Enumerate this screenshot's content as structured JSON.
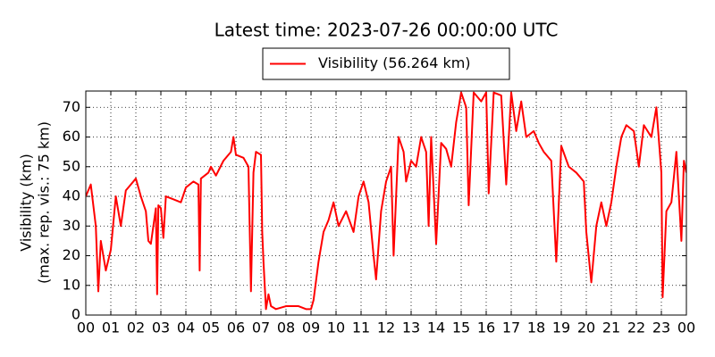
{
  "chart_data": {
    "type": "line",
    "title": "Latest time: 2023-07-26 00:00:00 UTC",
    "y_label": [
      "Visibility (km)",
      "(max. rep. vis.: 75 km)"
    ],
    "legend": "upper center",
    "grid": true,
    "x": [
      0,
      0.2,
      0.4,
      0.5,
      0.6,
      0.8,
      1.0,
      1.2,
      1.4,
      1.6,
      1.8,
      2.0,
      2.2,
      2.4,
      2.5,
      2.6,
      2.8,
      2.85,
      2.9,
      3.0,
      3.1,
      3.2,
      3.5,
      3.8,
      4.0,
      4.3,
      4.5,
      4.55,
      4.6,
      4.9,
      5.0,
      5.2,
      5.5,
      5.8,
      5.9,
      6.0,
      6.3,
      6.5,
      6.6,
      6.7,
      6.8,
      7.0,
      7.05,
      7.1,
      7.2,
      7.3,
      7.4,
      7.6,
      8.0,
      8.5,
      8.8,
      9.0,
      9.1,
      9.3,
      9.5,
      9.7,
      9.9,
      10.1,
      10.4,
      10.7,
      10.9,
      11.1,
      11.3,
      11.5,
      11.6,
      11.8,
      12.0,
      12.2,
      12.3,
      12.5,
      12.7,
      12.8,
      13.0,
      13.2,
      13.4,
      13.6,
      13.7,
      13.8,
      14.0,
      14.2,
      14.4,
      14.6,
      14.8,
      15.0,
      15.2,
      15.3,
      15.5,
      15.8,
      16.0,
      16.1,
      16.3,
      16.6,
      16.8,
      17.0,
      17.2,
      17.4,
      17.6,
      17.9,
      18.1,
      18.3,
      18.6,
      18.8,
      19.0,
      19.3,
      19.6,
      19.9,
      20.0,
      20.2,
      20.4,
      20.6,
      20.8,
      21.0,
      21.2,
      21.4,
      21.6,
      21.9,
      22.1,
      22.3,
      22.6,
      22.8,
      23.0,
      23.05,
      23.2,
      23.4,
      23.6,
      23.8,
      23.9,
      24.0
    ],
    "series": [
      {
        "name": "Visibility (56.264 km)",
        "color": "#ff0000",
        "values": [
          40,
          44,
          30,
          8,
          25,
          15,
          22,
          40,
          30,
          42,
          44,
          46,
          40,
          35,
          25,
          24,
          36,
          7,
          37,
          36,
          26,
          40,
          39,
          38,
          43,
          45,
          44,
          15,
          46,
          48,
          50,
          47,
          52,
          55,
          60,
          54,
          53,
          50,
          8,
          48,
          55,
          54,
          28,
          18,
          2,
          7,
          3,
          2,
          3,
          3,
          2,
          2,
          5,
          18,
          28,
          32,
          38,
          30,
          35,
          28,
          40,
          45,
          38,
          20,
          12,
          35,
          45,
          50,
          20,
          60,
          55,
          45,
          52,
          50,
          60,
          55,
          30,
          60,
          24,
          58,
          56,
          50,
          65,
          75,
          70,
          37,
          75,
          72,
          75,
          41,
          75,
          74,
          44,
          75,
          62,
          72,
          60,
          62,
          58,
          55,
          52,
          18,
          57,
          50,
          48,
          45,
          28,
          11,
          30,
          38,
          30,
          38,
          50,
          60,
          64,
          62,
          50,
          64,
          60,
          70,
          48,
          6,
          35,
          38,
          55,
          25,
          52,
          48
        ]
      }
    ],
    "xlim": [
      0,
      24
    ],
    "xticks": [
      {
        "value": 0,
        "label": "00"
      },
      {
        "value": 1,
        "label": "01"
      },
      {
        "value": 2,
        "label": "02"
      },
      {
        "value": 3,
        "label": "03"
      },
      {
        "value": 4,
        "label": "04"
      },
      {
        "value": 5,
        "label": "05"
      },
      {
        "value": 6,
        "label": "06"
      },
      {
        "value": 7,
        "label": "07"
      },
      {
        "value": 8,
        "label": "08"
      },
      {
        "value": 9,
        "label": "09"
      },
      {
        "value": 10,
        "label": "10"
      },
      {
        "value": 11,
        "label": "11"
      },
      {
        "value": 12,
        "label": "12"
      },
      {
        "value": 13,
        "label": "13"
      },
      {
        "value": 14,
        "label": "14"
      },
      {
        "value": 15,
        "label": "15"
      },
      {
        "value": 16,
        "label": "16"
      },
      {
        "value": 17,
        "label": "17"
      },
      {
        "value": 18,
        "label": "18"
      },
      {
        "value": 19,
        "label": "19"
      },
      {
        "value": 20,
        "label": "20"
      },
      {
        "value": 21,
        "label": "21"
      },
      {
        "value": 22,
        "label": "22"
      },
      {
        "value": 23,
        "label": "23"
      },
      {
        "value": 24,
        "label": "00"
      }
    ],
    "ylim": [
      0,
      75.5
    ],
    "yticks": [
      0,
      10,
      20,
      30,
      40,
      50,
      60,
      70
    ]
  }
}
